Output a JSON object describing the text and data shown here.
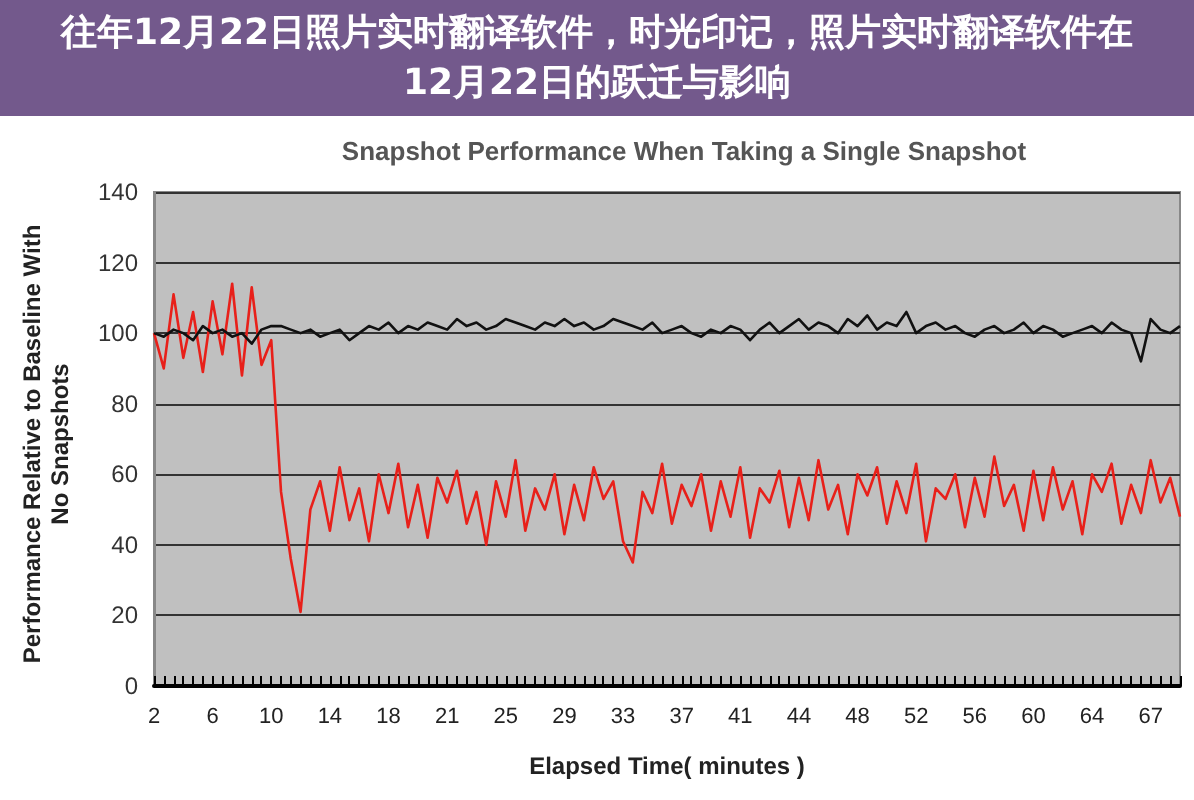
{
  "chart_data": {
    "type": "line",
    "title": "Snapshot Performance When Taking a Single Snapshot",
    "xlabel": "Elapsed Time( minutes )",
    "ylabel": "Performance Relative to Baseline With No Snapshots",
    "annotations": [
      "往年12月22日照片实时翻译软件，时光印记，照片实时翻译软件在12月22日的跃迁与影响"
    ],
    "categories": [
      "2",
      null,
      null,
      null,
      null,
      null,
      "6",
      null,
      null,
      null,
      null,
      null,
      "10",
      null,
      null,
      null,
      null,
      null,
      "14",
      null,
      null,
      null,
      null,
      null,
      "18",
      null,
      null,
      null,
      null,
      null,
      "21",
      null,
      null,
      null,
      null,
      null,
      "25",
      null,
      null,
      null,
      null,
      null,
      "29",
      null,
      null,
      null,
      null,
      null,
      "33",
      null,
      null,
      null,
      null,
      null,
      "37",
      null,
      null,
      null,
      null,
      null,
      "41",
      null,
      null,
      null,
      null,
      null,
      "44",
      null,
      null,
      null,
      null,
      null,
      "48",
      null,
      null,
      null,
      null,
      null,
      "52",
      null,
      null,
      null,
      null,
      null,
      "56",
      null,
      null,
      null,
      null,
      null,
      "60",
      null,
      null,
      null,
      null,
      null,
      "64",
      null,
      null,
      null,
      null,
      null,
      "67",
      null,
      null,
      null
    ],
    "series": [
      {
        "color": "#e8201a",
        "values": [
          100,
          90,
          111,
          93,
          106,
          89,
          109,
          94,
          114,
          88,
          113,
          91,
          98,
          55,
          36,
          21,
          50,
          58,
          44,
          62,
          47,
          56,
          41,
          60,
          49,
          63,
          45,
          57,
          42,
          59,
          52,
          61,
          46,
          55,
          40,
          58,
          48,
          64,
          44,
          56,
          50,
          60,
          43,
          57,
          47,
          62,
          53,
          58,
          41,
          35,
          55,
          49,
          63,
          46,
          57,
          51,
          60,
          44,
          58,
          48,
          62,
          42,
          56,
          52,
          61,
          45,
          59,
          47,
          64,
          50,
          57,
          43,
          60,
          54,
          62,
          46,
          58,
          49,
          63,
          41,
          56,
          53,
          60,
          45,
          59,
          48,
          65,
          51,
          57,
          44,
          61,
          47,
          62,
          50,
          58,
          43,
          60,
          55,
          63,
          46,
          57,
          49,
          64,
          52,
          59,
          48
        ]
      },
      {
        "color": "#111111",
        "values": [
          100,
          99,
          101,
          100,
          98,
          102,
          100,
          101,
          99,
          100,
          97,
          101,
          102,
          102,
          101,
          100,
          101,
          99,
          100,
          101,
          98,
          100,
          102,
          101,
          103,
          100,
          102,
          101,
          103,
          102,
          101,
          104,
          102,
          103,
          101,
          102,
          104,
          103,
          102,
          101,
          103,
          102,
          104,
          102,
          103,
          101,
          102,
          104,
          103,
          102,
          101,
          103,
          100,
          101,
          102,
          100,
          99,
          101,
          100,
          102,
          101,
          98,
          101,
          103,
          100,
          102,
          104,
          101,
          103,
          102,
          100,
          104,
          102,
          105,
          101,
          103,
          102,
          106,
          100,
          102,
          103,
          101,
          102,
          100,
          99,
          101,
          102,
          100,
          101,
          103,
          100,
          102,
          101,
          99,
          100,
          101,
          102,
          100,
          103,
          101,
          100,
          92,
          104,
          101,
          100,
          102
        ]
      }
    ],
    "ylim": [
      0,
      140
    ],
    "yticks": [
      0,
      20,
      40,
      60,
      80,
      100,
      120,
      140
    ],
    "grid": "y",
    "marker": "none",
    "line_style": "solid"
  }
}
